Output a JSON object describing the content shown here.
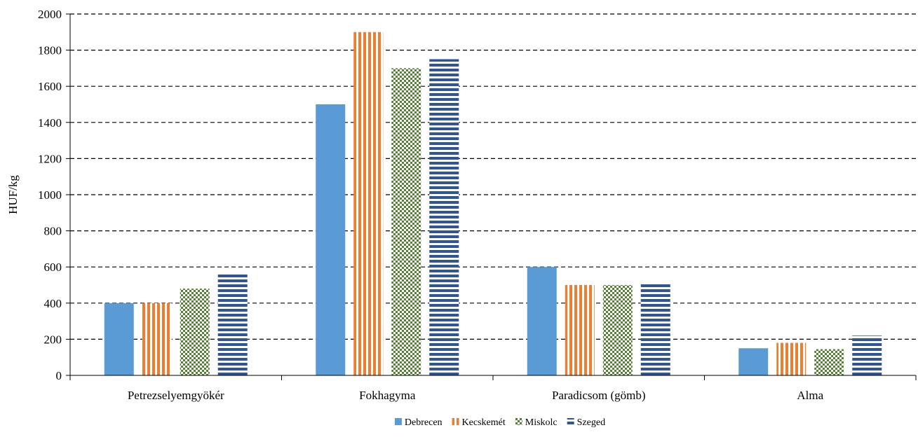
{
  "chart_data": {
    "type": "bar",
    "title": "",
    "xlabel": "",
    "ylabel": "HUF/kg",
    "ylim": [
      0,
      2000
    ],
    "yticks": [
      0,
      200,
      400,
      600,
      800,
      1000,
      1200,
      1400,
      1600,
      1800,
      2000
    ],
    "grid": true,
    "legend_position": "bottom",
    "categories": [
      "Petrezselyemgyökér",
      "Fokhagyma",
      "Paradicsom (gömb)",
      "Alma"
    ],
    "series": [
      {
        "name": "Debrecen",
        "values": [
          400,
          1500,
          600,
          150
        ],
        "color": "#5b9bd5",
        "pattern": "solid"
      },
      {
        "name": "Kecskemét",
        "values": [
          400,
          1900,
          500,
          180
        ],
        "color": "#ed7d31",
        "pattern": "vertical-stripes"
      },
      {
        "name": "Miskolc",
        "values": [
          480,
          1700,
          500,
          145
        ],
        "color": "#548235",
        "pattern": "checker"
      },
      {
        "name": "Szeged",
        "values": [
          560,
          1750,
          510,
          220
        ],
        "color": "#2f5597",
        "pattern": "horizontal-stripes"
      }
    ]
  }
}
